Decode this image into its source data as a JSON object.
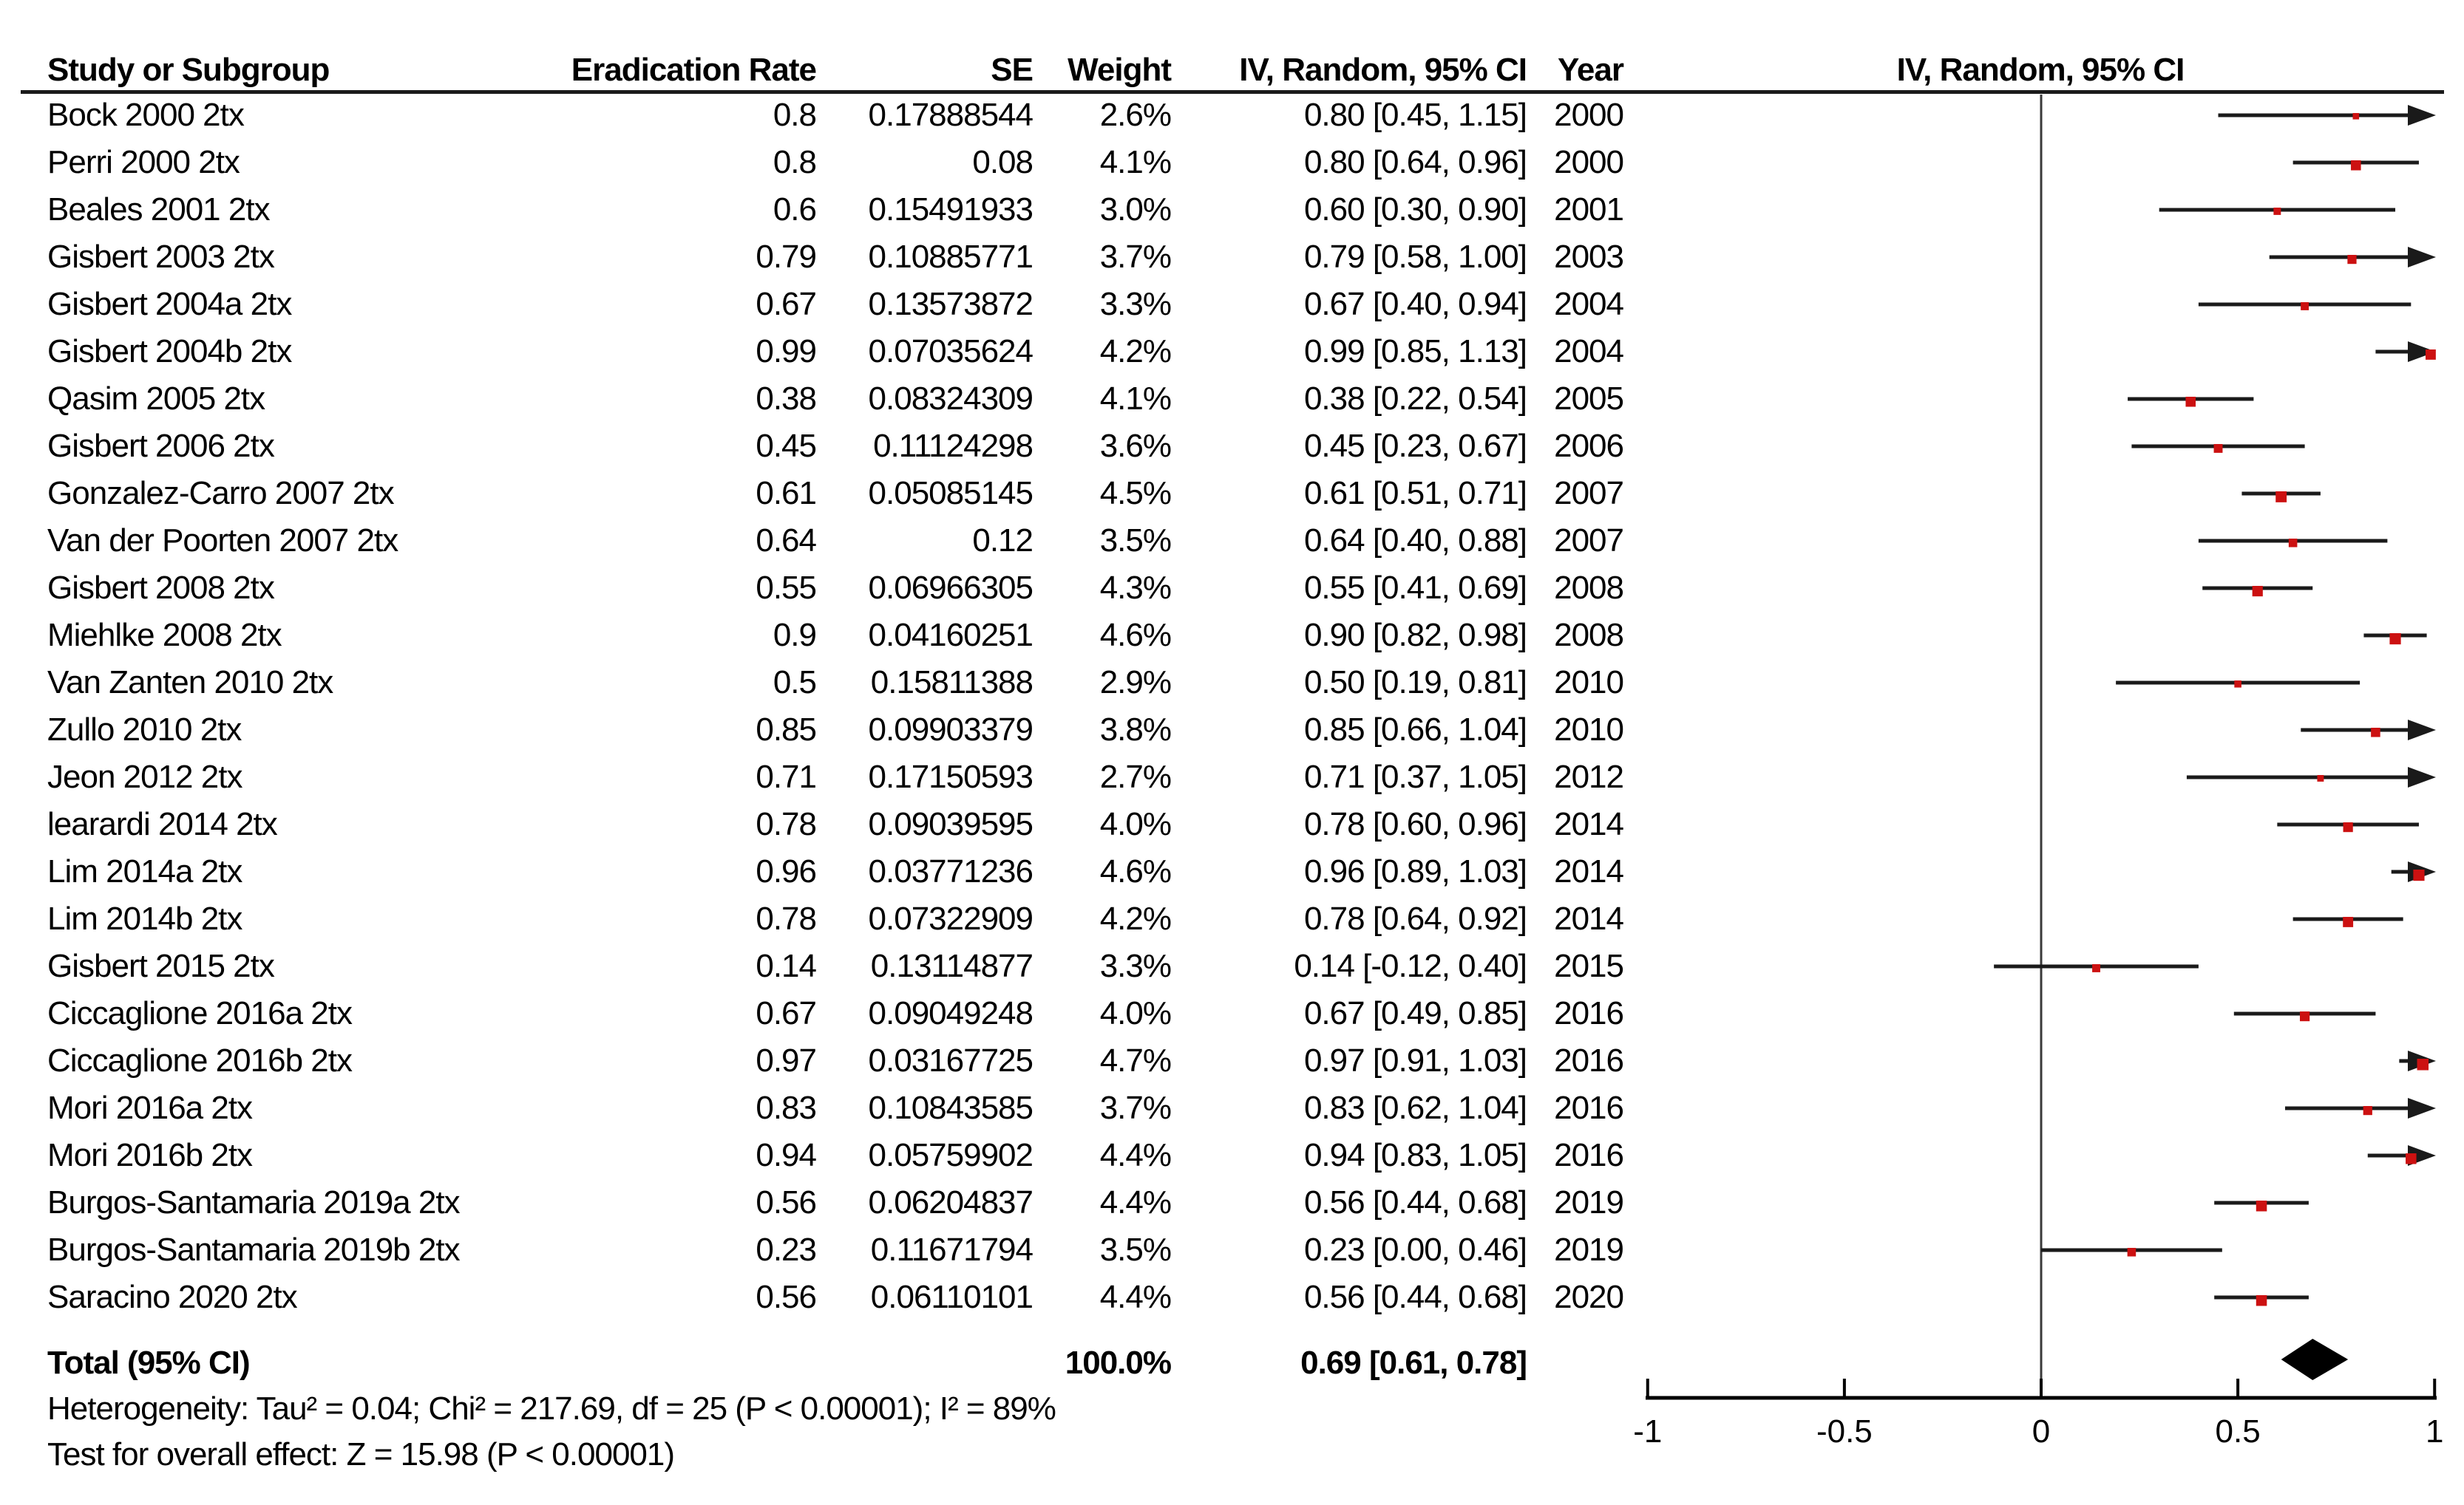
{
  "table": {
    "headers": {
      "study": "Study or Subgroup",
      "rate": "Eradication Rate",
      "se": "SE",
      "weight": "Weight",
      "effect": "IV, Random, 95% CI",
      "year": "Year",
      "plot": "IV, Random, 95% CI"
    }
  },
  "chart_data": {
    "type": "scatter",
    "variant": "forest-plot",
    "effect_measure": "IV, Random, 95% CI",
    "xlim": [
      -1,
      1
    ],
    "x_ticks": [
      -1,
      -0.5,
      0,
      0.5,
      1
    ],
    "grid": false,
    "rows": [
      {
        "study": "Bock 2000 2tx",
        "rate": "0.8",
        "se": "0.17888544",
        "weight": "2.6%",
        "weight_val": 2.6,
        "ci_text": "0.80 [0.45, 1.15]",
        "year": "2000",
        "est": 0.8,
        "lo": 0.45,
        "hi": 1.15
      },
      {
        "study": "Perri 2000 2tx",
        "rate": "0.8",
        "se": "0.08",
        "weight": "4.1%",
        "weight_val": 4.1,
        "ci_text": "0.80 [0.64, 0.96]",
        "year": "2000",
        "est": 0.8,
        "lo": 0.64,
        "hi": 0.96
      },
      {
        "study": "Beales 2001 2tx",
        "rate": "0.6",
        "se": "0.15491933",
        "weight": "3.0%",
        "weight_val": 3.0,
        "ci_text": "0.60 [0.30, 0.90]",
        "year": "2001",
        "est": 0.6,
        "lo": 0.3,
        "hi": 0.9
      },
      {
        "study": "Gisbert 2003 2tx",
        "rate": "0.79",
        "se": "0.10885771",
        "weight": "3.7%",
        "weight_val": 3.7,
        "ci_text": "0.79 [0.58, 1.00]",
        "year": "2003",
        "est": 0.79,
        "lo": 0.58,
        "hi": 1.0
      },
      {
        "study": "Gisbert 2004a 2tx",
        "rate": "0.67",
        "se": "0.13573872",
        "weight": "3.3%",
        "weight_val": 3.3,
        "ci_text": "0.67 [0.40, 0.94]",
        "year": "2004",
        "est": 0.67,
        "lo": 0.4,
        "hi": 0.94
      },
      {
        "study": "Gisbert 2004b 2tx",
        "rate": "0.99",
        "se": "0.07035624",
        "weight": "4.2%",
        "weight_val": 4.2,
        "ci_text": "0.99 [0.85, 1.13]",
        "year": "2004",
        "est": 0.99,
        "lo": 0.85,
        "hi": 1.13
      },
      {
        "study": "Qasim 2005 2tx",
        "rate": "0.38",
        "se": "0.08324309",
        "weight": "4.1%",
        "weight_val": 4.1,
        "ci_text": "0.38 [0.22, 0.54]",
        "year": "2005",
        "est": 0.38,
        "lo": 0.22,
        "hi": 0.54
      },
      {
        "study": "Gisbert 2006 2tx",
        "rate": "0.45",
        "se": "0.11124298",
        "weight": "3.6%",
        "weight_val": 3.6,
        "ci_text": "0.45 [0.23, 0.67]",
        "year": "2006",
        "est": 0.45,
        "lo": 0.23,
        "hi": 0.67
      },
      {
        "study": "Gonzalez-Carro 2007 2tx",
        "rate": "0.61",
        "se": "0.05085145",
        "weight": "4.5%",
        "weight_val": 4.5,
        "ci_text": "0.61 [0.51, 0.71]",
        "year": "2007",
        "est": 0.61,
        "lo": 0.51,
        "hi": 0.71
      },
      {
        "study": "Van der Poorten 2007 2tx",
        "rate": "0.64",
        "se": "0.12",
        "weight": "3.5%",
        "weight_val": 3.5,
        "ci_text": "0.64 [0.40, 0.88]",
        "year": "2007",
        "est": 0.64,
        "lo": 0.4,
        "hi": 0.88
      },
      {
        "study": "Gisbert 2008 2tx",
        "rate": "0.55",
        "se": "0.06966305",
        "weight": "4.3%",
        "weight_val": 4.3,
        "ci_text": "0.55 [0.41, 0.69]",
        "year": "2008",
        "est": 0.55,
        "lo": 0.41,
        "hi": 0.69
      },
      {
        "study": "Miehlke 2008 2tx",
        "rate": "0.9",
        "se": "0.04160251",
        "weight": "4.6%",
        "weight_val": 4.6,
        "ci_text": "0.90 [0.82, 0.98]",
        "year": "2008",
        "est": 0.9,
        "lo": 0.82,
        "hi": 0.98
      },
      {
        "study": "Van Zanten 2010 2tx",
        "rate": "0.5",
        "se": "0.15811388",
        "weight": "2.9%",
        "weight_val": 2.9,
        "ci_text": "0.50 [0.19, 0.81]",
        "year": "2010",
        "est": 0.5,
        "lo": 0.19,
        "hi": 0.81
      },
      {
        "study": "Zullo 2010 2tx",
        "rate": "0.85",
        "se": "0.09903379",
        "weight": "3.8%",
        "weight_val": 3.8,
        "ci_text": "0.85 [0.66, 1.04]",
        "year": "2010",
        "est": 0.85,
        "lo": 0.66,
        "hi": 1.04
      },
      {
        "study": "Jeon 2012 2tx",
        "rate": "0.71",
        "se": "0.17150593",
        "weight": "2.7%",
        "weight_val": 2.7,
        "ci_text": "0.71 [0.37, 1.05]",
        "year": "2012",
        "est": 0.71,
        "lo": 0.37,
        "hi": 1.05
      },
      {
        "study": "learardi 2014 2tx",
        "rate": "0.78",
        "se": "0.09039595",
        "weight": "4.0%",
        "weight_val": 4.0,
        "ci_text": "0.78 [0.60, 0.96]",
        "year": "2014",
        "est": 0.78,
        "lo": 0.6,
        "hi": 0.96
      },
      {
        "study": "Lim 2014a 2tx",
        "rate": "0.96",
        "se": "0.03771236",
        "weight": "4.6%",
        "weight_val": 4.6,
        "ci_text": "0.96 [0.89, 1.03]",
        "year": "2014",
        "est": 0.96,
        "lo": 0.89,
        "hi": 1.03
      },
      {
        "study": "Lim 2014b 2tx",
        "rate": "0.78",
        "se": "0.07322909",
        "weight": "4.2%",
        "weight_val": 4.2,
        "ci_text": "0.78 [0.64, 0.92]",
        "year": "2014",
        "est": 0.78,
        "lo": 0.64,
        "hi": 0.92
      },
      {
        "study": "Gisbert 2015 2tx",
        "rate": "0.14",
        "se": "0.13114877",
        "weight": "3.3%",
        "weight_val": 3.3,
        "ci_text": "0.14 [-0.12, 0.40]",
        "year": "2015",
        "est": 0.14,
        "lo": -0.12,
        "hi": 0.4
      },
      {
        "study": "Ciccaglione 2016a 2tx",
        "rate": "0.67",
        "se": "0.09049248",
        "weight": "4.0%",
        "weight_val": 4.0,
        "ci_text": "0.67 [0.49, 0.85]",
        "year": "2016",
        "est": 0.67,
        "lo": 0.49,
        "hi": 0.85
      },
      {
        "study": "Ciccaglione 2016b 2tx",
        "rate": "0.97",
        "se": "0.03167725",
        "weight": "4.7%",
        "weight_val": 4.7,
        "ci_text": "0.97 [0.91, 1.03]",
        "year": "2016",
        "est": 0.97,
        "lo": 0.91,
        "hi": 1.03
      },
      {
        "study": "Mori 2016a 2tx",
        "rate": "0.83",
        "se": "0.10843585",
        "weight": "3.7%",
        "weight_val": 3.7,
        "ci_text": "0.83 [0.62, 1.04]",
        "year": "2016",
        "est": 0.83,
        "lo": 0.62,
        "hi": 1.04
      },
      {
        "study": "Mori 2016b 2tx",
        "rate": "0.94",
        "se": "0.05759902",
        "weight": "4.4%",
        "weight_val": 4.4,
        "ci_text": "0.94 [0.83, 1.05]",
        "year": "2016",
        "est": 0.94,
        "lo": 0.83,
        "hi": 1.05
      },
      {
        "study": "Burgos-Santamaria 2019a 2tx",
        "rate": "0.56",
        "se": "0.06204837",
        "weight": "4.4%",
        "weight_val": 4.4,
        "ci_text": "0.56 [0.44, 0.68]",
        "year": "2019",
        "est": 0.56,
        "lo": 0.44,
        "hi": 0.68
      },
      {
        "study": "Burgos-Santamaria 2019b 2tx",
        "rate": "0.23",
        "se": "0.11671794",
        "weight": "3.5%",
        "weight_val": 3.5,
        "ci_text": "0.23 [0.00, 0.46]",
        "year": "2019",
        "est": 0.23,
        "lo": 0.0,
        "hi": 0.46
      },
      {
        "study": "Saracino 2020 2tx",
        "rate": "0.56",
        "se": "0.06110101",
        "weight": "4.4%",
        "weight_val": 4.4,
        "ci_text": "0.56 [0.44, 0.68]",
        "year": "2020",
        "est": 0.56,
        "lo": 0.44,
        "hi": 0.68
      }
    ],
    "total": {
      "label": "Total (95% CI)",
      "weight": "100.0%",
      "ci_text": "0.69 [0.61, 0.78]",
      "est": 0.69,
      "lo": 0.61,
      "hi": 0.78
    },
    "footer": {
      "heterogeneity": "Heterogeneity: Tau² = 0.04; Chi² = 217.69, df = 25 (P < 0.00001); I² = 89%",
      "overall_effect": "Test for overall effect: Z = 15.98 (P < 0.00001)"
    }
  },
  "colors": {
    "marker": "#cc1111",
    "ci_line": "#1a1a1a",
    "zero_line": "#3a3a3a",
    "axis": "#000000",
    "diamond": "#000000",
    "text": "#000000"
  }
}
